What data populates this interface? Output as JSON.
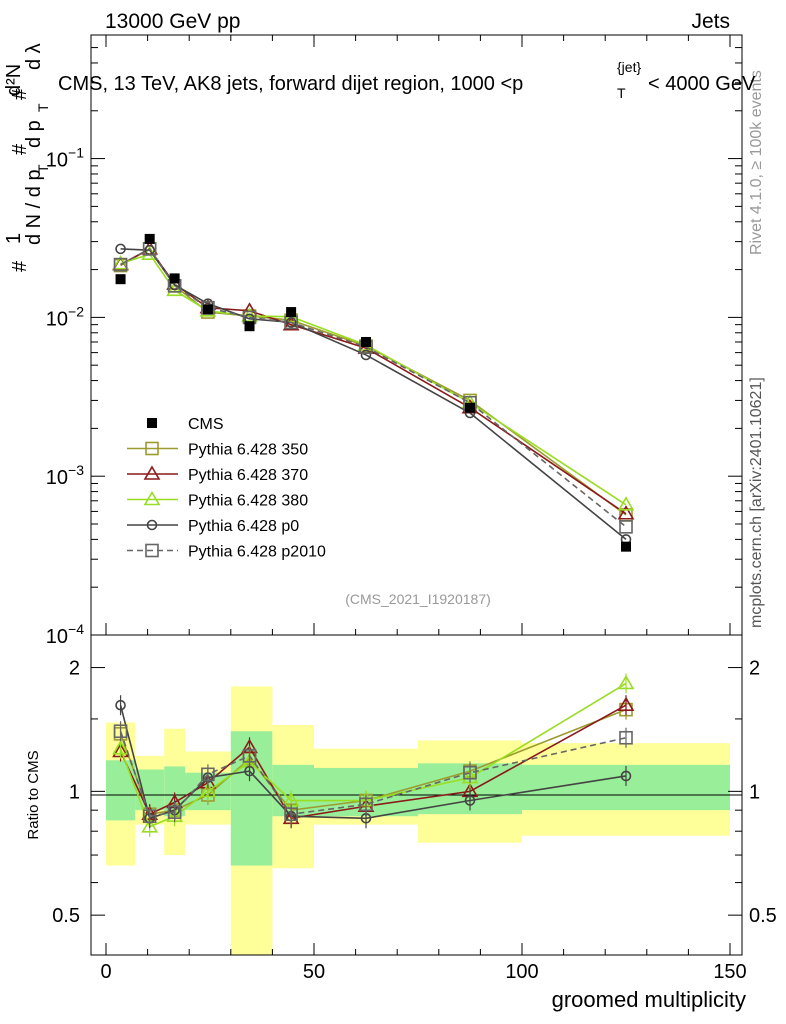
{
  "header": {
    "left": "13000 GeV pp",
    "right": "Jets"
  },
  "title": {
    "prefix": "CMS, 13 TeV, AK8 jets, forward dijet region, 1000 <p",
    "sub": "T",
    "sup": "{jet}",
    "suffix": "< 4000 GeV"
  },
  "side_labels": {
    "rivet": "Rivet 4.1.0, ≥ 100k events",
    "mcplots": "mcplots.cern.ch [arXiv:2401.10621]"
  },
  "watermark": "(CMS_2021_I1920187)",
  "y_axis_main": {
    "num1": "#",
    "one": "1",
    "dN": "d N / d p",
    "T1": "T",
    "num2": "#",
    "dp": "d p",
    "T2": "T",
    "num3": "#",
    "d2N": "d²N",
    "dlam": "d λ",
    "full": "# 1 / (d N / d p_T) # d p_T # d²N / d λ"
  },
  "chart_data": [
    {
      "type": "scatter",
      "panel": "main",
      "yscale": "log",
      "xlim": [
        -5,
        152
      ],
      "ylim": [
        0.0001,
        0.6
      ],
      "yticks": [
        {
          "value": 0.1,
          "base": "10",
          "exp": "−1"
        },
        {
          "value": 0.01,
          "base": "10",
          "exp": "−2"
        },
        {
          "value": 0.001,
          "base": "10",
          "exp": "−3"
        },
        {
          "value": 0.0001,
          "base": "10",
          "exp": "−4"
        }
      ],
      "x": [
        3.5,
        10.5,
        16.5,
        24.5,
        34.5,
        44.5,
        62.5,
        87.5,
        125
      ],
      "series": [
        {
          "name": "CMS",
          "color": "#000000",
          "marker": "filled-square",
          "line": "none",
          "values": [
            0.0174,
            0.0312,
            0.0176,
            0.0112,
            0.0088,
            0.0108,
            0.007,
            0.0027,
            0.00036
          ]
        },
        {
          "name": "Pythia 6.428 350",
          "color": "#9c9c2e",
          "marker": "open-square",
          "line": "solid",
          "values": [
            0.0212,
            0.027,
            0.0158,
            0.0108,
            0.0102,
            0.0096,
            0.0066,
            0.003,
            0.00057
          ]
        },
        {
          "name": "Pythia 6.428 370",
          "color": "#8b1a1a",
          "marker": "open-triangle",
          "line": "solid",
          "values": [
            0.0215,
            0.027,
            0.0162,
            0.0115,
            0.011,
            0.009,
            0.0064,
            0.0027,
            0.00058
          ]
        },
        {
          "name": "Pythia 6.428 380",
          "color": "#99dd22",
          "marker": "open-triangle",
          "line": "solid",
          "values": [
            0.0218,
            0.025,
            0.0148,
            0.011,
            0.0102,
            0.0101,
            0.0067,
            0.0029,
            0.00066
          ]
        },
        {
          "name": "Pythia 6.428 p0",
          "color": "#444444",
          "marker": "open-circle",
          "line": "solid",
          "values": [
            0.027,
            0.0265,
            0.016,
            0.0122,
            0.0098,
            0.0093,
            0.0058,
            0.0025,
            0.0004
          ]
        },
        {
          "name": "Pythia 6.428 p2010",
          "color": "#666666",
          "marker": "open-square",
          "line": "dashed",
          "values": [
            0.0215,
            0.027,
            0.0158,
            0.0115,
            0.01,
            0.0093,
            0.0065,
            0.0029,
            0.00048
          ]
        }
      ]
    },
    {
      "type": "scatter",
      "panel": "ratio",
      "title": "",
      "xlabel": "groomed multiplicity",
      "ylabel": "Ratio to CMS",
      "yscale": "log",
      "xlim": [
        -5,
        152
      ],
      "ylim": [
        0.4,
        2.4
      ],
      "xticks": [
        0,
        50,
        100,
        150
      ],
      "yticks": [
        0.5,
        1,
        2
      ],
      "x": [
        3.5,
        10.5,
        16.5,
        24.5,
        34.5,
        44.5,
        62.5,
        87.5,
        125
      ],
      "uncertainty_bands": {
        "bins": [
          [
            0,
            7
          ],
          [
            7,
            14
          ],
          [
            14,
            19
          ],
          [
            19,
            30
          ],
          [
            30,
            40
          ],
          [
            40,
            50
          ],
          [
            50,
            75
          ],
          [
            75,
            100
          ],
          [
            100,
            150
          ]
        ],
        "green": [
          [
            0.85,
            1.19
          ],
          [
            0.9,
            1.13
          ],
          [
            0.87,
            1.15
          ],
          [
            0.9,
            1.11
          ],
          [
            0.66,
            1.4
          ],
          [
            0.87,
            1.16
          ],
          [
            0.87,
            1.14
          ],
          [
            0.88,
            1.17
          ],
          [
            0.9,
            1.16
          ]
        ],
        "yellow": [
          [
            0.66,
            1.47
          ],
          [
            0.83,
            1.22
          ],
          [
            0.7,
            1.42
          ],
          [
            0.83,
            1.25
          ],
          [
            0.38,
            1.8
          ],
          [
            0.65,
            1.45
          ],
          [
            0.83,
            1.27
          ],
          [
            0.75,
            1.33
          ],
          [
            0.78,
            1.31
          ]
        ]
      },
      "series": [
        {
          "name": "Pythia 6.428 350",
          "values": [
            1.38,
            0.88,
            0.9,
            0.98,
            1.2,
            0.9,
            0.95,
            1.12,
            1.58
          ]
        },
        {
          "name": "Pythia 6.428 370",
          "values": [
            1.25,
            0.88,
            0.94,
            1.05,
            1.28,
            0.86,
            0.92,
            1.0,
            1.62
          ]
        },
        {
          "name": "Pythia 6.428 380",
          "values": [
            1.27,
            0.82,
            0.87,
            1.0,
            1.18,
            0.95,
            0.95,
            1.08,
            1.83
          ]
        },
        {
          "name": "Pythia 6.428 p0",
          "values": [
            1.62,
            0.86,
            0.9,
            1.08,
            1.12,
            0.87,
            0.86,
            0.95,
            1.09
          ]
        },
        {
          "name": "Pythia 6.428 p2010",
          "values": [
            1.4,
            0.87,
            0.89,
            1.1,
            1.22,
            0.88,
            0.93,
            1.11,
            1.35
          ]
        }
      ]
    }
  ]
}
